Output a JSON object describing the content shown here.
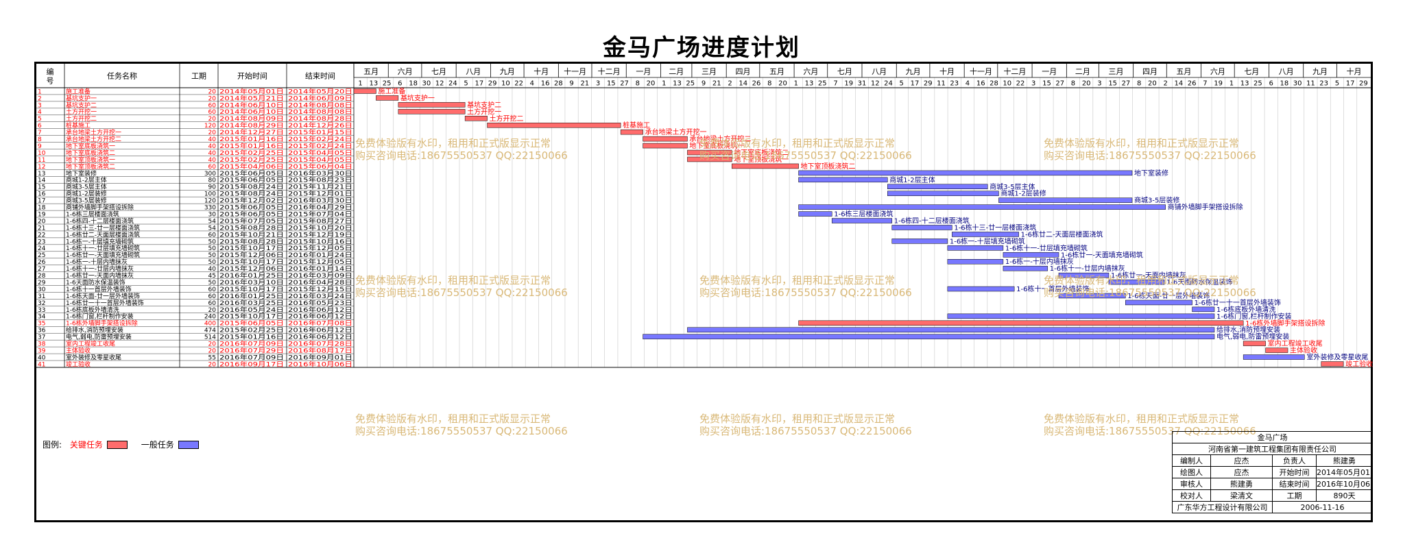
{
  "page": {
    "title": "金马广场进度计划"
  },
  "columns": {
    "id": "编号",
    "name": "任务名称",
    "duration": "工期",
    "start": "开始时间",
    "end": "结束时间"
  },
  "timeline": {
    "months": [
      "五月",
      "六月",
      "七月",
      "八月",
      "九月",
      "十月",
      "十一月",
      "十二月",
      "一月",
      "二月",
      "三月",
      "四月",
      "五月",
      "六月",
      "七月",
      "八月",
      "九月",
      "十月",
      "十一月",
      "十二月",
      "一月",
      "二月",
      "三月",
      "四月",
      "五月",
      "六月",
      "七月",
      "八月",
      "九月",
      "十月"
    ],
    "days": [
      1,
      13,
      25,
      6,
      18,
      30,
      12,
      24,
      5,
      17,
      29,
      10,
      22,
      4,
      16,
      28,
      9,
      21,
      3,
      15,
      27,
      8,
      20,
      1,
      13,
      25,
      9,
      21,
      2,
      14,
      26,
      8,
      20,
      1,
      13,
      25,
      7,
      19,
      31,
      12,
      24,
      5,
      17,
      29,
      11,
      23,
      4,
      16,
      28,
      10,
      22,
      3,
      15,
      27,
      8,
      20,
      3,
      15,
      27,
      8,
      20,
      2,
      14,
      26,
      7,
      19,
      1,
      13,
      25,
      6,
      18,
      30,
      11,
      23,
      5,
      17,
      29
    ]
  },
  "tasks": [
    {
      "id": "1",
      "name": "施工准备",
      "duration": "20",
      "start": "2014年05月01日",
      "end": "2014年05月20日",
      "critical": true
    },
    {
      "id": "2",
      "name": "基坑支护一",
      "duration": "20",
      "start": "2014年05月21日",
      "end": "2014年06月09日",
      "critical": true
    },
    {
      "id": "3",
      "name": "基坑支护二",
      "duration": "60",
      "start": "2014年06月10日",
      "end": "2014年08月08日",
      "critical": true
    },
    {
      "id": "4",
      "name": "土方开挖一",
      "duration": "60",
      "start": "2014年06月10日",
      "end": "2014年08月08日",
      "critical": true
    },
    {
      "id": "5",
      "name": "土方开挖二",
      "duration": "20",
      "start": "2014年08月09日",
      "end": "2014年08月28日",
      "critical": true
    },
    {
      "id": "6",
      "name": "桩基施工",
      "duration": "120",
      "start": "2014年08月29日",
      "end": "2014年12月26日",
      "critical": true
    },
    {
      "id": "7",
      "name": "承台地梁土方开挖一",
      "duration": "20",
      "start": "2014年12月27日",
      "end": "2015年01月15日",
      "critical": true
    },
    {
      "id": "8",
      "name": "承台地梁土方开挖二",
      "duration": "40",
      "start": "2015年01月16日",
      "end": "2015年02月24日",
      "critical": true
    },
    {
      "id": "9",
      "name": "地下室底板浇筑一",
      "duration": "40",
      "start": "2015年01月16日",
      "end": "2015年02月24日",
      "critical": true
    },
    {
      "id": "10",
      "name": "地下室底板浇筑二",
      "duration": "40",
      "start": "2015年02月25日",
      "end": "2015年04月05日",
      "critical": true
    },
    {
      "id": "11",
      "name": "地下室顶板浇筑一",
      "duration": "40",
      "start": "2015年02月25日",
      "end": "2015年04月05日",
      "critical": true
    },
    {
      "id": "12",
      "name": "地下室顶板浇筑二",
      "duration": "60",
      "start": "2015年04月06日",
      "end": "2015年06月04日",
      "critical": true
    },
    {
      "id": "13",
      "name": "地下室装修",
      "duration": "300",
      "start": "2015年06月05日",
      "end": "2016年03月30日",
      "critical": false
    },
    {
      "id": "14",
      "name": "商城1-2层主体",
      "duration": "80",
      "start": "2015年06月05日",
      "end": "2015年08月23日",
      "critical": false
    },
    {
      "id": "15",
      "name": "商城3-5层主体",
      "duration": "90",
      "start": "2015年08月24日",
      "end": "2015年11月21日",
      "critical": false
    },
    {
      "id": "16",
      "name": "商城1-2层装修",
      "duration": "100",
      "start": "2015年08月24日",
      "end": "2015年12月01日",
      "critical": false
    },
    {
      "id": "17",
      "name": "商城3-5层装修",
      "duration": "120",
      "start": "2015年12月02日",
      "end": "2016年03月30日",
      "critical": false
    },
    {
      "id": "18",
      "name": "商铺外墙脚手架搭设拆除",
      "duration": "330",
      "start": "2015年06月05日",
      "end": "2016年04月29日",
      "critical": false
    },
    {
      "id": "19",
      "name": "1-6栋三层楼面浇筑",
      "duration": "30",
      "start": "2015年06月05日",
      "end": "2015年07月04日",
      "critical": false
    },
    {
      "id": "20",
      "name": "1-6栋四-十二层楼面浇筑",
      "duration": "54",
      "start": "2015年07月05日",
      "end": "2015年08月27日",
      "critical": false
    },
    {
      "id": "21",
      "name": "1-6栋十三-廿一层楼面浇筑",
      "duration": "54",
      "start": "2015年08月28日",
      "end": "2015年10月20日",
      "critical": false
    },
    {
      "id": "22",
      "name": "1-6栋廿二-天面层楼面浇筑",
      "duration": "60",
      "start": "2015年10月21日",
      "end": "2015年12月19日",
      "critical": false
    },
    {
      "id": "23",
      "name": "1-6栋一-十层填充墙砌筑",
      "duration": "50",
      "start": "2015年08月28日",
      "end": "2015年10月16日",
      "critical": false
    },
    {
      "id": "24",
      "name": "1-6栋十一-廿层填充墙砌筑",
      "duration": "50",
      "start": "2015年10月17日",
      "end": "2015年12月05日",
      "critical": false
    },
    {
      "id": "25",
      "name": "1-6栋廿一-天面填充墙砌筑",
      "duration": "50",
      "start": "2015年12月06日",
      "end": "2016年01月24日",
      "critical": false
    },
    {
      "id": "26",
      "name": "1-6栋一-十层内墙抹灰",
      "duration": "50",
      "start": "2015年10月17日",
      "end": "2015年12月05日",
      "critical": false
    },
    {
      "id": "27",
      "name": "1-6栋十一-廿层内墙抹灰",
      "duration": "40",
      "start": "2015年12月06日",
      "end": "2016年01月14日",
      "critical": false
    },
    {
      "id": "28",
      "name": "1-6栋廿一-天面内墙抹灰",
      "duration": "45",
      "start": "2016年01月25日",
      "end": "2016年03月09日",
      "critical": false
    },
    {
      "id": "29",
      "name": "1-6天面防水保温装饰",
      "duration": "50",
      "start": "2016年03月10日",
      "end": "2016年04月28日",
      "critical": false
    },
    {
      "id": "30",
      "name": "1-6栋十一首层外墙装饰",
      "duration": "60",
      "start": "2015年10月17日",
      "end": "2015年12月15日",
      "critical": false
    },
    {
      "id": "31",
      "name": "1-6栋天面-廿一层外墙装饰",
      "duration": "60",
      "start": "2016年01月25日",
      "end": "2016年03月24日",
      "critical": false
    },
    {
      "id": "32",
      "name": "1-6栋廿一十一首层外墙装饰",
      "duration": "60",
      "start": "2016年03月25日",
      "end": "2016年05月23日",
      "critical": false
    },
    {
      "id": "33",
      "name": "1-6栋底板外墙清洗",
      "duration": "20",
      "start": "2016年05月24日",
      "end": "2016年06月12日",
      "critical": false
    },
    {
      "id": "34",
      "name": "1-6栋门窗,栏杆制作安装",
      "duration": "240",
      "start": "2015年10月17日",
      "end": "2016年06月12日",
      "critical": false
    },
    {
      "id": "35",
      "name": "1-6栋外墙脚手架搭设拆除",
      "duration": "400",
      "start": "2015年06月05日",
      "end": "2016年07月08日",
      "critical": true
    },
    {
      "id": "36",
      "name": "给排水,消防预埋安装",
      "duration": "474",
      "start": "2015年02月25日",
      "end": "2016年06月12日",
      "critical": false
    },
    {
      "id": "37",
      "name": "电气,弱电,防雷预埋安装",
      "duration": "514",
      "start": "2015年01月16日",
      "end": "2016年06月12日",
      "critical": false
    },
    {
      "id": "38",
      "name": "室内工程竣工收尾",
      "duration": "20",
      "start": "2016年07月09日",
      "end": "2016年07月28日",
      "critical": true
    },
    {
      "id": "39",
      "name": "主体验收",
      "duration": "20",
      "start": "2016年07月29日",
      "end": "2016年08月17日",
      "critical": true
    },
    {
      "id": "40",
      "name": "室外装修及零星收尾",
      "duration": "55",
      "start": "2016年07月09日",
      "end": "2016年09月01日",
      "critical": false
    },
    {
      "id": "41",
      "name": "竣工验收",
      "duration": "20",
      "start": "2016年09月17日",
      "end": "2016年10月06日",
      "critical": true
    }
  ],
  "legend": {
    "label": "图例:",
    "critical": "关键任务",
    "normal": "一般任务"
  },
  "colors": {
    "critical": "#ff6c6c",
    "normal": "#7878ff",
    "critical_text": "#ff0000",
    "normal_text": "#000080",
    "watermark": "#d9b877"
  },
  "watermarks": {
    "line1": "免费体验版有水印，租用和正式版显示正常",
    "line2": "购买咨询电话:18675550537 QQ:22150066"
  },
  "title_block": {
    "project": "金马广场",
    "company": "河南省第一建筑工程集团有限责任公司",
    "rows": [
      {
        "l1": "编制人",
        "v1": "应杰",
        "l2": "负责人",
        "v2": "熊建勇"
      },
      {
        "l1": "绘图人",
        "v1": "应杰",
        "l2": "开始时间",
        "v2": "2014年05月01日"
      },
      {
        "l1": "审核人",
        "v1": "熊建勇",
        "l2": "结束时间",
        "v2": "2016年10月06日"
      },
      {
        "l1": "校对人",
        "v1": "梁清文",
        "l2": "工期",
        "v2": "890天"
      }
    ],
    "designer": "广东华方工程设计有限公司",
    "date": "2006-11-16"
  }
}
